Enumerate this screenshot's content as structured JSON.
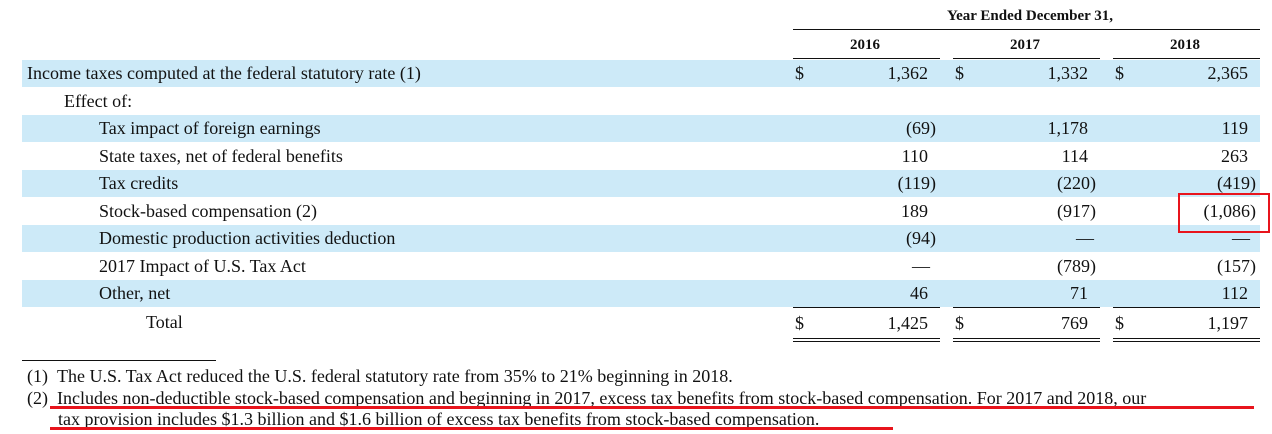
{
  "header": {
    "period": "Year Ended December 31,",
    "years": [
      "2016",
      "2017",
      "2018"
    ]
  },
  "rows": [
    {
      "label": "Income taxes computed at the federal statutory rate (1)",
      "dollar": true,
      "v2016": "1,362",
      "v2017": "1,332",
      "v2018": "2,365"
    },
    {
      "label": "Effect of:",
      "dollar": false,
      "v2016": "",
      "v2017": "",
      "v2018": ""
    },
    {
      "label": "Tax impact of foreign earnings",
      "dollar": false,
      "v2016": "(69)",
      "v2017": "1,178",
      "v2018": "119"
    },
    {
      "label": "State taxes, net of federal benefits",
      "dollar": false,
      "v2016": "110",
      "v2017": "114",
      "v2018": "263"
    },
    {
      "label": "Tax credits",
      "dollar": false,
      "v2016": "(119)",
      "v2017": "(220)",
      "v2018": "(419)"
    },
    {
      "label": "Stock-based compensation (2)",
      "dollar": false,
      "v2016": "189",
      "v2017": "(917)",
      "v2018": "(1,086)"
    },
    {
      "label": "Domestic production activities deduction",
      "dollar": false,
      "v2016": "(94)",
      "v2017": "—",
      "v2018": "—"
    },
    {
      "label": "2017 Impact of U.S. Tax Act",
      "dollar": false,
      "v2016": "—",
      "v2017": "(789)",
      "v2018": "(157)"
    },
    {
      "label": "Other, net",
      "dollar": false,
      "v2016": "46",
      "v2017": "71",
      "v2018": "112"
    },
    {
      "label": "Total",
      "dollar": true,
      "v2016": "1,425",
      "v2017": "769",
      "v2018": "1,197"
    }
  ],
  "currency_symbol": "$",
  "footnotes": {
    "note1": "(1) The U.S. Tax Act reduced the U.S. federal statutory rate from 35% to 21% beginning in 2018.",
    "note2_line1": "(2) Includes non-deductible stock-based compensation and beginning in 2017, excess tax benefits from stock-based compensation. For 2017 and 2018, our",
    "note2_line2": "tax provision includes $1.3 billion and $1.6 billion of excess tax benefits from stock-based compensation."
  },
  "annotation_colors": {
    "highlight": "#e8141c",
    "band": "#cdeaf8"
  }
}
